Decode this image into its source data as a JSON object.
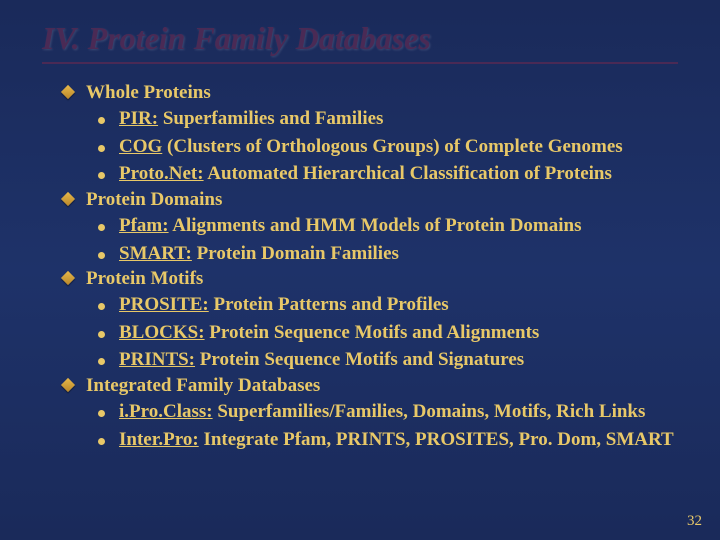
{
  "title": "IV. Protein Family Databases",
  "sections": [
    {
      "header": "Whole Proteins",
      "items": [
        {
          "link": "PIR:",
          "rest": " Superfamilies and Families"
        },
        {
          "link": "COG",
          "rest": " (Clusters of Orthologous Groups) of Complete Genomes"
        },
        {
          "link": "Proto.Net:",
          "rest": " Automated Hierarchical Classification of Proteins"
        }
      ]
    },
    {
      "header": "Protein Domains",
      "items": [
        {
          "link": "Pfam:",
          "rest": " Alignments and HMM Models of Protein Domains"
        },
        {
          "link": "SMART:",
          "rest": " Protein Domain Families"
        }
      ]
    },
    {
      "header": "Protein Motifs",
      "items": [
        {
          "link": "PROSITE:",
          "rest": " Protein Patterns and Profiles"
        },
        {
          "link": "BLOCKS:",
          "rest": " Protein Sequence Motifs and Alignments"
        },
        {
          "link": "PRINTS:",
          "rest": " Protein Sequence Motifs and Signatures"
        }
      ]
    },
    {
      "header": "Integrated Family Databases",
      "items": [
        {
          "link": "i.Pro.Class:",
          "rest": " Superfamilies/Families, Domains, Motifs, Rich Links"
        },
        {
          "link": "Inter.Pro:",
          "rest": " Integrate Pfam, PRINTS, PROSITES, Pro. Dom, SMART"
        }
      ]
    }
  ],
  "page_number": "32"
}
